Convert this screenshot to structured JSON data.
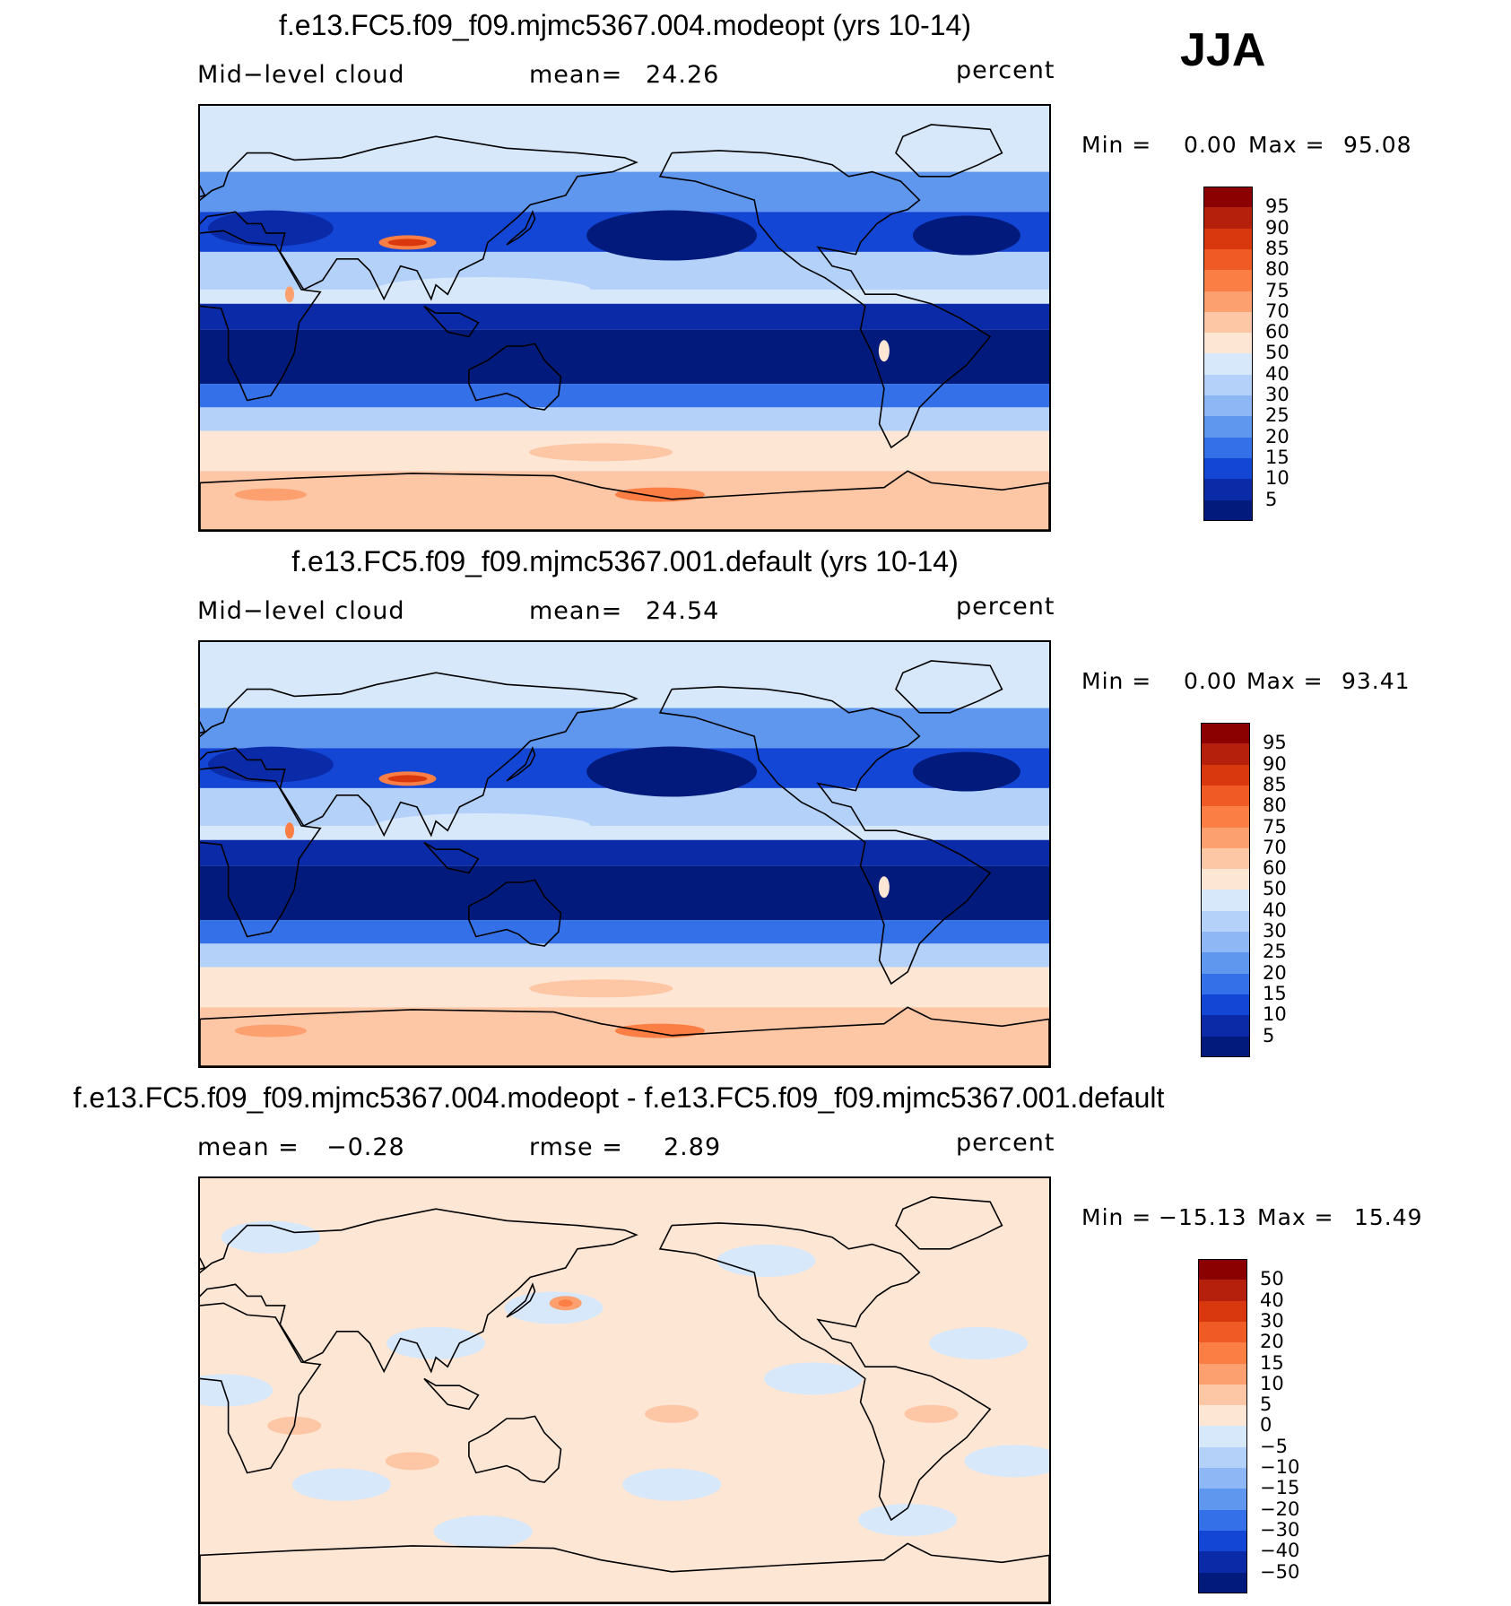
{
  "season": "JJA",
  "panels": [
    {
      "title": "f.e13.FC5.f09_f09.mjmc5367.004.modeopt (yrs 10-14)",
      "left_label": "Mid−level cloud",
      "mean_label": "mean=",
      "mean_value": "24.26",
      "units": "percent",
      "min_label": "Min =",
      "min_value": "0.00",
      "max_label": "Max =",
      "max_value": "95.08",
      "kind": "field"
    },
    {
      "title": "f.e13.FC5.f09_f09.mjmc5367.001.default (yrs 10-14)",
      "left_label": "Mid−level cloud",
      "mean_label": "mean=",
      "mean_value": "24.54",
      "units": "percent",
      "min_label": "Min =",
      "min_value": "0.00",
      "max_label": "Max =",
      "max_value": "93.41",
      "kind": "field"
    },
    {
      "title": "f.e13.FC5.f09_f09.mjmc5367.004.modeopt - f.e13.FC5.f09_f09.mjmc5367.001.default",
      "left_label": "mean =",
      "left_value": "−0.28",
      "mean_label": "rmse =",
      "mean_value": "2.89",
      "units": "percent",
      "min_label": "Min =",
      "min_value": "−15.13",
      "max_label": "Max =",
      "max_value": "15.49",
      "kind": "difference"
    }
  ],
  "colorbars": {
    "field_levels": [
      "95",
      "90",
      "85",
      "80",
      "75",
      "70",
      "60",
      "50",
      "40",
      "30",
      "25",
      "20",
      "15",
      "10",
      "5"
    ],
    "field_colors": [
      "#8b0000",
      "#b5200d",
      "#d9380f",
      "#f05a24",
      "#fb7f45",
      "#fca070",
      "#fdc6a5",
      "#fde6d4",
      "#d8e8fb",
      "#b4d1f9",
      "#8db8f5",
      "#5f97ef",
      "#3470e8",
      "#1446d6",
      "#0a2aa8",
      "#021a7c"
    ],
    "diff_levels": [
      "50",
      "40",
      "30",
      "20",
      "15",
      "10",
      "5",
      "0",
      "−5",
      "−10",
      "−15",
      "−20",
      "−30",
      "−40",
      "−50"
    ],
    "diff_colors": [
      "#8b0000",
      "#b5200d",
      "#d9380f",
      "#f05a24",
      "#fb7f45",
      "#fca070",
      "#fdc6a5",
      "#fde6d4",
      "#d8e8fb",
      "#b4d1f9",
      "#8db8f5",
      "#5f97ef",
      "#3470e8",
      "#1446d6",
      "#0a2aa8",
      "#021a7c"
    ]
  },
  "chart_data": [
    {
      "type": "heatmap",
      "title": "f.e13.FC5.f09_f09.mjmc5367.004.modeopt (yrs 10-14)",
      "variable": "Mid-level cloud",
      "units": "percent",
      "season": "JJA",
      "mean": 24.26,
      "min": 0.0,
      "max": 95.08,
      "contour_levels": [
        5,
        10,
        15,
        20,
        25,
        30,
        40,
        50,
        60,
        70,
        75,
        80,
        85,
        90,
        95
      ]
    },
    {
      "type": "heatmap",
      "title": "f.e13.FC5.f09_f09.mjmc5367.001.default (yrs 10-14)",
      "variable": "Mid-level cloud",
      "units": "percent",
      "season": "JJA",
      "mean": 24.54,
      "min": 0.0,
      "max": 93.41,
      "contour_levels": [
        5,
        10,
        15,
        20,
        25,
        30,
        40,
        50,
        60,
        70,
        75,
        80,
        85,
        90,
        95
      ]
    },
    {
      "type": "heatmap",
      "title": "f.e13.FC5.f09_f09.mjmc5367.004.modeopt - f.e13.FC5.f09_f09.mjmc5367.001.default",
      "units": "percent",
      "season": "JJA",
      "mean": -0.28,
      "rmse": 2.89,
      "min": -15.13,
      "max": 15.49,
      "contour_levels": [
        -50,
        -40,
        -30,
        -20,
        -15,
        -10,
        -5,
        0,
        5,
        10,
        15,
        20,
        30,
        40,
        50
      ]
    }
  ]
}
